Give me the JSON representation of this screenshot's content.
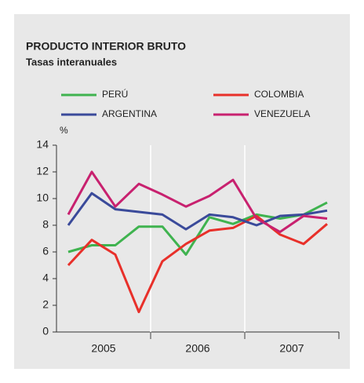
{
  "chart_data": {
    "type": "line",
    "title": "PRODUCTO INTERIOR BRUTO",
    "subtitle": "Tasas interanuales",
    "y_label": "%",
    "categories": [
      null,
      null,
      null,
      null,
      null,
      null,
      null,
      null,
      null,
      null,
      null,
      null
    ],
    "groups": [
      "2005",
      "2006",
      "2007"
    ],
    "series": [
      {
        "name": "PERÚ",
        "color": "#3fb34f",
        "values": [
          6.0,
          6.5,
          6.5,
          7.9,
          7.9,
          5.8,
          8.6,
          8.1,
          8.8,
          8.5,
          8.8,
          9.7
        ]
      },
      {
        "name": "COLOMBIA",
        "color": "#e8302a",
        "values": [
          5.0,
          6.9,
          5.8,
          1.5,
          5.3,
          6.6,
          7.6,
          7.8,
          8.7,
          7.3,
          6.6,
          8.1
        ]
      },
      {
        "name": "ARGENTINA",
        "color": "#3a4a9a",
        "values": [
          8.0,
          10.4,
          9.2,
          9.0,
          8.8,
          7.7,
          8.8,
          8.6,
          8.0,
          8.7,
          8.8,
          9.1
        ]
      },
      {
        "name": "VENEZUELA",
        "color": "#c8216f",
        "values": [
          8.8,
          12.0,
          9.4,
          11.1,
          10.3,
          9.4,
          10.2,
          11.4,
          8.5,
          7.5,
          8.7,
          8.5
        ]
      }
    ],
    "ylim": [
      0,
      14
    ],
    "yticks": [
      0,
      2,
      4,
      6,
      8,
      10,
      12,
      14
    ]
  }
}
